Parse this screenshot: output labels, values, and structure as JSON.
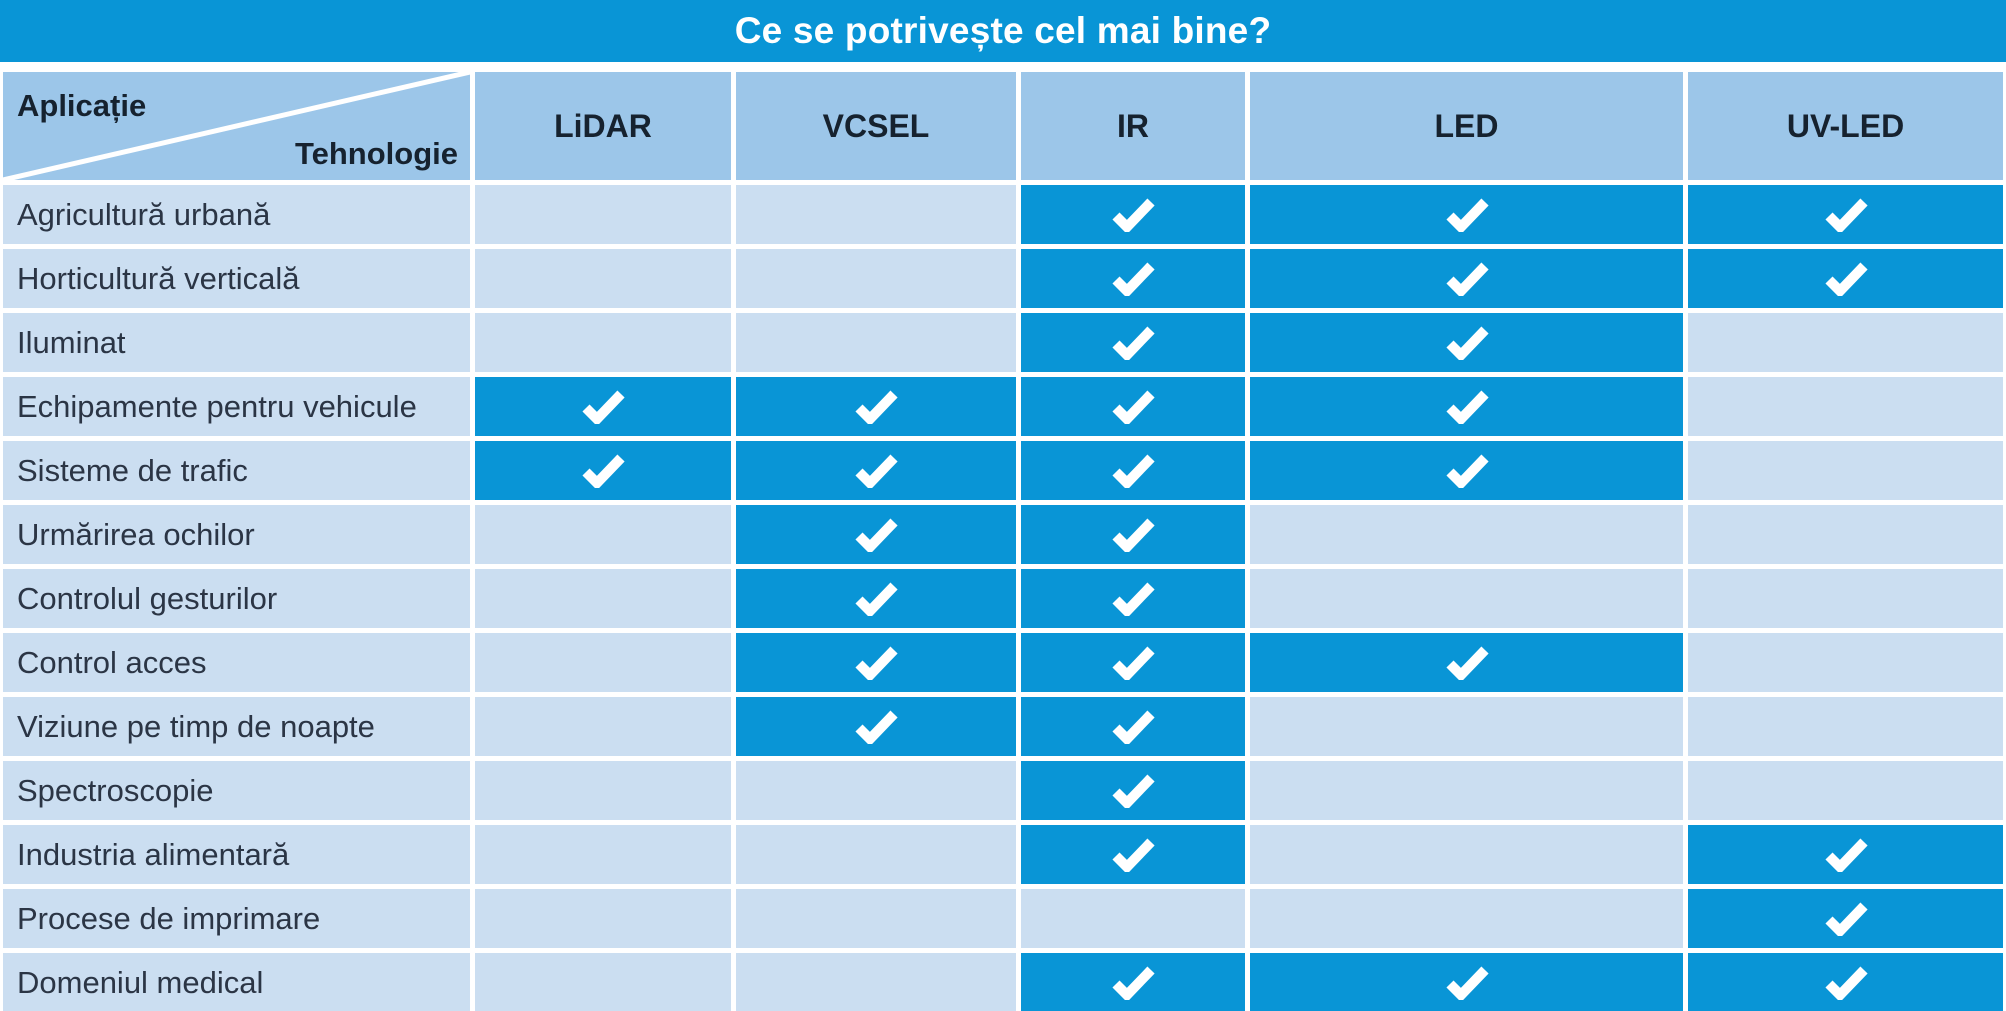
{
  "chart_data": {
    "type": "table",
    "title": "Ce se potrivește cel mai bine?",
    "row_axis_label": "Aplicație",
    "column_axis_label": "Tehnologie",
    "columns": [
      "LiDAR",
      "VCSEL",
      "IR",
      "LED",
      "UV-LED"
    ],
    "rows": [
      {
        "label": "Agricultură urbană",
        "checks": [
          false,
          false,
          true,
          true,
          true
        ]
      },
      {
        "label": "Horticultură verticală",
        "checks": [
          false,
          false,
          true,
          true,
          true
        ]
      },
      {
        "label": "Iluminat",
        "checks": [
          false,
          false,
          true,
          true,
          false
        ]
      },
      {
        "label": "Echipamente pentru vehicule",
        "checks": [
          true,
          true,
          true,
          true,
          false
        ]
      },
      {
        "label": "Sisteme de trafic",
        "checks": [
          true,
          true,
          true,
          true,
          false
        ]
      },
      {
        "label": "Urmărirea ochilor",
        "checks": [
          false,
          true,
          true,
          false,
          false
        ]
      },
      {
        "label": "Controlul gesturilor",
        "checks": [
          false,
          true,
          true,
          false,
          false
        ]
      },
      {
        "label": "Control acces",
        "checks": [
          false,
          true,
          true,
          true,
          false
        ]
      },
      {
        "label": "Viziune pe timp de noapte",
        "checks": [
          false,
          true,
          true,
          false,
          false
        ]
      },
      {
        "label": "Spectroscopie",
        "checks": [
          false,
          false,
          true,
          false,
          false
        ]
      },
      {
        "label": "Industria alimentară",
        "checks": [
          false,
          false,
          true,
          false,
          true
        ]
      },
      {
        "label": "Procese de imprimare",
        "checks": [
          false,
          false,
          false,
          false,
          true
        ]
      },
      {
        "label": "Domeniul medical",
        "checks": [
          false,
          false,
          true,
          true,
          true
        ]
      }
    ],
    "legend_position": "none",
    "grid": "white-gaps-between-cells"
  },
  "icons": {
    "check": "check-icon"
  },
  "colors": {
    "accent_blue": "#0995D6",
    "header_blue": "#9CC6E9",
    "cell_light_blue": "#CBDEF1",
    "title_text": "#FFFFFF",
    "label_text": "#2B3545",
    "header_text": "#16222F",
    "check_mark": "#FFFFFF",
    "divider": "#FFFFFF"
  }
}
